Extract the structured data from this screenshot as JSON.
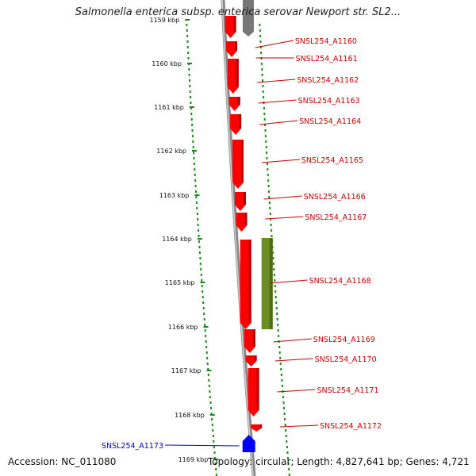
{
  "title": "Salmonella enterica subsp. enterica serovar Newport str. SL2...",
  "footer": {
    "accession": "Accession: NC_011080",
    "topology": "Topology: circular; Length: 4,827,641 bp; Genes: 4,721"
  },
  "colors": {
    "forward_gene": "#ff0000",
    "reverse_gene": "#0000ff",
    "other_feature": "#6b8e23",
    "label_red": "#cc0000",
    "label_blue": "#0000cc",
    "backbone": "#888888",
    "tick_dots": "#1a8a1a"
  },
  "ticks": [
    "1159 kbp",
    "1160 kbp",
    "1161 kbp",
    "1162 kbp",
    "1163 kbp",
    "1164 kbp",
    "1165 kbp",
    "1166 kbp",
    "1167 kbp",
    "1168 kbp",
    "1169 kbp"
  ],
  "genes": [
    {
      "label": "SNSL254_A1160",
      "strand": "forward"
    },
    {
      "label": "SNSL254_A1161",
      "strand": "forward"
    },
    {
      "label": "SNSL254_A1162",
      "strand": "forward"
    },
    {
      "label": "SNSL254_A1163",
      "strand": "forward"
    },
    {
      "label": "SNSL254_A1164",
      "strand": "forward"
    },
    {
      "label": "SNSL254_A1165",
      "strand": "forward"
    },
    {
      "label": "SNSL254_A1166",
      "strand": "forward"
    },
    {
      "label": "SNSL254_A1167",
      "strand": "forward"
    },
    {
      "label": "SNSL254_A1168",
      "strand": "forward"
    },
    {
      "label": "SNSL254_A1169",
      "strand": "forward"
    },
    {
      "label": "SNSL254_A1170",
      "strand": "forward"
    },
    {
      "label": "SNSL254_A1171",
      "strand": "forward"
    },
    {
      "label": "SNSL254_A1172",
      "strand": "forward"
    },
    {
      "label": "SNSL254_A1173",
      "strand": "reverse"
    }
  ]
}
